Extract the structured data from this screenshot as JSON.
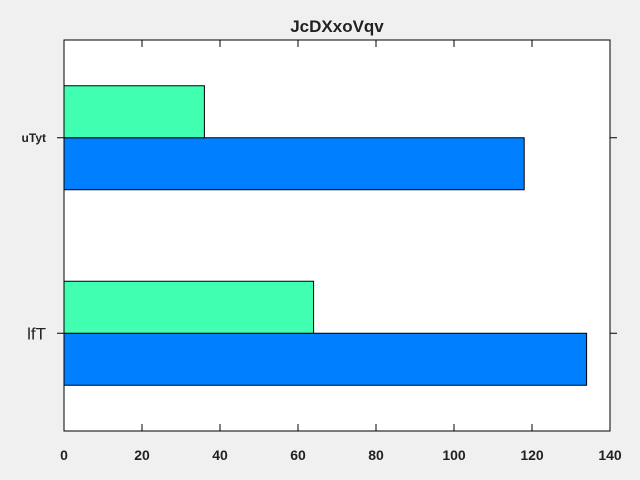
{
  "chart_data": {
    "type": "bar",
    "orientation": "horizontal",
    "title": "JcDXxoVqv",
    "xlabel": "",
    "ylabel": "",
    "categories": [
      "lfT",
      "uTyt"
    ],
    "series": [
      {
        "color": "#007fff",
        "values": [
          134,
          118
        ]
      },
      {
        "color": "#40ffb0",
        "values": [
          64,
          36
        ]
      }
    ],
    "xlim": [
      0,
      140
    ],
    "xticks": [
      0,
      20,
      40,
      60,
      80,
      100,
      120,
      140
    ],
    "grid": false,
    "legend": "none"
  }
}
